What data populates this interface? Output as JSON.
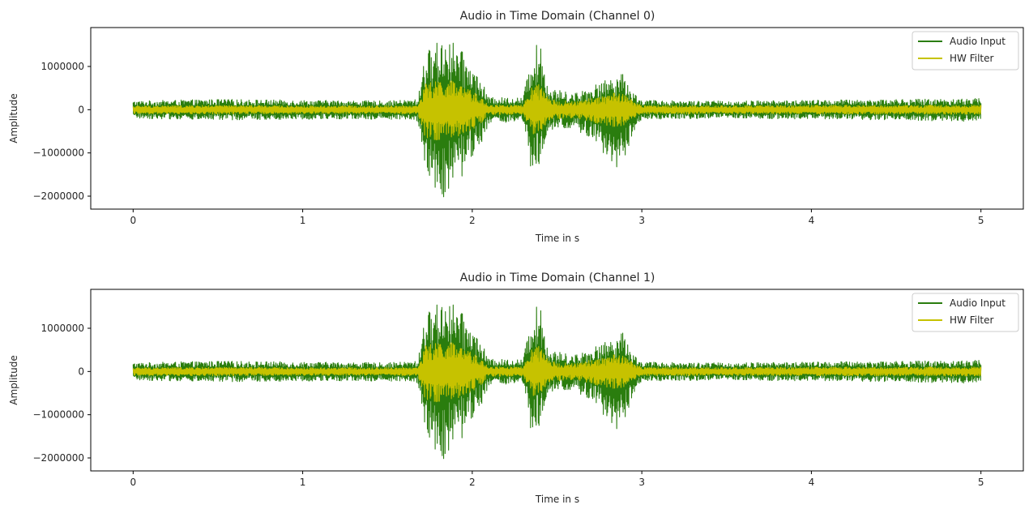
{
  "chart_data": [
    {
      "type": "line",
      "title": "Audio in Time Domain (Channel 0)",
      "xlabel": "Time in s",
      "ylabel": "Amplitude",
      "xlim": [
        -0.25,
        5.25
      ],
      "ylim": [
        -2300000,
        1900000
      ],
      "xticks": [
        0,
        1,
        2,
        3,
        4,
        5
      ],
      "xtick_labels": [
        "0",
        "1",
        "2",
        "3",
        "4",
        "5"
      ],
      "yticks": [
        -2000000,
        -1000000,
        0,
        1000000
      ],
      "ytick_labels": [
        "−2000000",
        "−1000000",
        "0",
        "1000000"
      ],
      "grid": false,
      "legend": "top-right",
      "series": [
        {
          "name": "Audio Input",
          "color": "#2a7d0e",
          "envelope": {
            "t": [
              0,
              0.5,
              1.0,
              1.5,
              1.68,
              1.72,
              1.8,
              1.85,
              1.95,
              2.05,
              2.1,
              2.3,
              2.35,
              2.4,
              2.45,
              2.6,
              2.8,
              2.85,
              2.9,
              2.95,
              3.0,
              3.5,
              4.0,
              4.5,
              5.0
            ],
            "max": [
              200000,
              240000,
              220000,
              200000,
              240000,
              1300000,
              1600000,
              1720000,
              1300000,
              700000,
              280000,
              280000,
              1320000,
              1620000,
              500000,
              380000,
              700000,
              880000,
              800000,
              400000,
              220000,
              200000,
              220000,
              240000,
              260000
            ],
            "min": [
              -200000,
              -240000,
              -220000,
              -220000,
              -260000,
              -1400000,
              -1950000,
              -2080000,
              -1500000,
              -800000,
              -300000,
              -300000,
              -1500000,
              -1400000,
              -500000,
              -420000,
              -1100000,
              -1350000,
              -1200000,
              -500000,
              -220000,
              -200000,
              -220000,
              -240000,
              -280000
            ]
          }
        },
        {
          "name": "HW Filter",
          "color": "#c6c200",
          "envelope": {
            "t": [
              0,
              0.5,
              1.0,
              1.5,
              1.68,
              1.72,
              1.8,
              1.85,
              1.95,
              2.05,
              2.1,
              2.3,
              2.35,
              2.4,
              2.45,
              2.6,
              2.8,
              2.85,
              2.9,
              2.95,
              3.0,
              3.5,
              4.0,
              4.5,
              5.0
            ],
            "max": [
              90000,
              100000,
              90000,
              90000,
              100000,
              600000,
              700000,
              720000,
              550000,
              300000,
              110000,
              110000,
              500000,
              600000,
              250000,
              180000,
              350000,
              420000,
              380000,
              200000,
              100000,
              90000,
              100000,
              100000,
              110000
            ],
            "min": [
              -90000,
              -100000,
              -90000,
              -90000,
              -100000,
              -650000,
              -720000,
              -700000,
              -600000,
              -320000,
              -110000,
              -110000,
              -550000,
              -600000,
              -250000,
              -180000,
              -380000,
              -420000,
              -400000,
              -200000,
              -100000,
              -90000,
              -100000,
              -100000,
              -110000
            ]
          }
        }
      ]
    },
    {
      "type": "line",
      "title": "Audio in Time Domain (Channel 1)",
      "xlabel": "Time in s",
      "ylabel": "Amplitude",
      "xlim": [
        -0.25,
        5.25
      ],
      "ylim": [
        -2300000,
        1900000
      ],
      "xticks": [
        0,
        1,
        2,
        3,
        4,
        5
      ],
      "xtick_labels": [
        "0",
        "1",
        "2",
        "3",
        "4",
        "5"
      ],
      "yticks": [
        -2000000,
        -1000000,
        0,
        1000000
      ],
      "ytick_labels": [
        "−2000000",
        "−1000000",
        "0",
        "1000000"
      ],
      "grid": false,
      "legend": "top-right",
      "series": [
        {
          "name": "Audio Input",
          "color": "#2a7d0e",
          "envelope": {
            "t": [
              0,
              0.5,
              1.0,
              1.5,
              1.68,
              1.72,
              1.8,
              1.85,
              1.95,
              2.05,
              2.1,
              2.3,
              2.35,
              2.4,
              2.45,
              2.6,
              2.8,
              2.85,
              2.9,
              2.95,
              3.0,
              3.5,
              4.0,
              4.5,
              5.0
            ],
            "max": [
              200000,
              240000,
              220000,
              200000,
              240000,
              1300000,
              1600000,
              1720000,
              1300000,
              700000,
              280000,
              280000,
              1320000,
              1620000,
              500000,
              380000,
              700000,
              880000,
              900000,
              400000,
              220000,
              200000,
              220000,
              240000,
              260000
            ],
            "min": [
              -200000,
              -240000,
              -220000,
              -220000,
              -260000,
              -1400000,
              -1950000,
              -2080000,
              -1500000,
              -800000,
              -300000,
              -300000,
              -1500000,
              -1400000,
              -500000,
              -420000,
              -1100000,
              -1350000,
              -1200000,
              -500000,
              -220000,
              -200000,
              -220000,
              -240000,
              -280000
            ]
          }
        },
        {
          "name": "HW Filter",
          "color": "#c6c200",
          "envelope": {
            "t": [
              0,
              0.5,
              1.0,
              1.5,
              1.68,
              1.72,
              1.8,
              1.85,
              1.95,
              2.05,
              2.1,
              2.3,
              2.35,
              2.4,
              2.45,
              2.6,
              2.8,
              2.85,
              2.9,
              2.95,
              3.0,
              3.5,
              4.0,
              4.5,
              5.0
            ],
            "max": [
              90000,
              100000,
              90000,
              90000,
              100000,
              600000,
              700000,
              720000,
              550000,
              300000,
              110000,
              110000,
              500000,
              600000,
              250000,
              180000,
              350000,
              420000,
              380000,
              200000,
              100000,
              90000,
              100000,
              100000,
              110000
            ],
            "min": [
              -90000,
              -100000,
              -90000,
              -90000,
              -100000,
              -650000,
              -720000,
              -700000,
              -600000,
              -320000,
              -110000,
              -110000,
              -550000,
              -600000,
              -250000,
              -180000,
              -380000,
              -420000,
              -400000,
              -200000,
              -100000,
              -90000,
              -100000,
              -100000,
              -110000
            ]
          }
        }
      ]
    }
  ]
}
